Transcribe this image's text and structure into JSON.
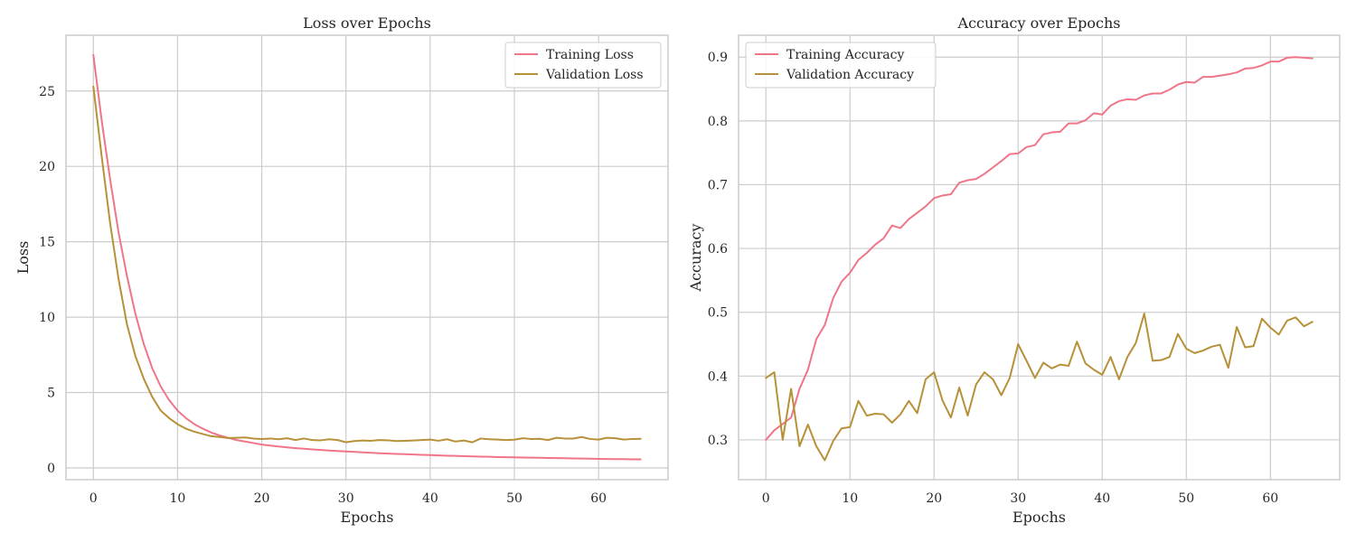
{
  "colors": {
    "training": "#ef7588",
    "validation": "#b69139"
  },
  "chart_data": [
    {
      "type": "line",
      "title": "Loss over Epochs",
      "xlabel": "Epochs",
      "ylabel": "Loss",
      "xlim": [
        -3.25,
        68.25
      ],
      "ylim": [
        -0.78,
        28.7
      ],
      "xticks": [
        0,
        10,
        20,
        30,
        40,
        50,
        60
      ],
      "yticks": [
        0,
        5,
        10,
        15,
        20,
        25
      ],
      "grid": true,
      "legend": "upper right",
      "series": [
        {
          "name": "Training Loss",
          "color": "#ef7588",
          "values": [
            27.4,
            23.0,
            19.1,
            15.6,
            12.7,
            10.2,
            8.2,
            6.6,
            5.4,
            4.5,
            3.8,
            3.3,
            2.9,
            2.6,
            2.35,
            2.15,
            2.0,
            1.85,
            1.75,
            1.65,
            1.55,
            1.48,
            1.42,
            1.36,
            1.31,
            1.27,
            1.23,
            1.19,
            1.15,
            1.12,
            1.09,
            1.06,
            1.03,
            1.0,
            0.97,
            0.95,
            0.93,
            0.91,
            0.89,
            0.87,
            0.85,
            0.83,
            0.81,
            0.8,
            0.78,
            0.76,
            0.75,
            0.74,
            0.72,
            0.71,
            0.7,
            0.69,
            0.68,
            0.67,
            0.66,
            0.65,
            0.64,
            0.63,
            0.62,
            0.61,
            0.6,
            0.59,
            0.58,
            0.58,
            0.57,
            0.57
          ]
        },
        {
          "name": "Validation Loss",
          "color": "#b69139",
          "values": [
            25.3,
            20.6,
            16.2,
            12.5,
            9.5,
            7.4,
            5.9,
            4.7,
            3.8,
            3.3,
            2.9,
            2.6,
            2.4,
            2.25,
            2.1,
            2.05,
            1.98,
            2.0,
            2.02,
            1.95,
            1.92,
            1.95,
            1.9,
            1.97,
            1.85,
            1.95,
            1.85,
            1.83,
            1.9,
            1.85,
            1.7,
            1.78,
            1.82,
            1.8,
            1.85,
            1.83,
            1.78,
            1.8,
            1.82,
            1.85,
            1.88,
            1.8,
            1.9,
            1.75,
            1.82,
            1.7,
            1.95,
            1.9,
            1.88,
            1.85,
            1.87,
            1.97,
            1.92,
            1.93,
            1.85,
            2.0,
            1.95,
            1.95,
            2.05,
            1.92,
            1.88,
            2.0,
            1.97,
            1.88,
            1.92,
            1.93
          ]
        }
      ]
    },
    {
      "type": "line",
      "title": "Accuracy over Epochs",
      "xlabel": "Epochs",
      "ylabel": "Accuracy",
      "xlim": [
        -3.25,
        68.25
      ],
      "ylim": [
        0.2376,
        0.9343
      ],
      "xticks": [
        0,
        10,
        20,
        30,
        40,
        50,
        60
      ],
      "yticks": [
        0.3,
        0.4,
        0.5,
        0.6,
        0.7,
        0.8,
        0.9
      ],
      "grid": true,
      "legend": "upper left",
      "series": [
        {
          "name": "Training Accuracy",
          "color": "#ef7588",
          "values": [
            0.3,
            0.315,
            0.325,
            0.335,
            0.38,
            0.41,
            0.458,
            0.48,
            0.522,
            0.548,
            0.562,
            0.582,
            0.593,
            0.606,
            0.616,
            0.636,
            0.632,
            0.646,
            0.656,
            0.666,
            0.679,
            0.683,
            0.685,
            0.703,
            0.707,
            0.709,
            0.717,
            0.727,
            0.737,
            0.748,
            0.749,
            0.759,
            0.762,
            0.779,
            0.782,
            0.783,
            0.796,
            0.796,
            0.801,
            0.812,
            0.81,
            0.824,
            0.831,
            0.834,
            0.833,
            0.84,
            0.843,
            0.843,
            0.849,
            0.857,
            0.861,
            0.86,
            0.869,
            0.869,
            0.871,
            0.873,
            0.876,
            0.882,
            0.883,
            0.887,
            0.893,
            0.893,
            0.899,
            0.9,
            0.899,
            0.898
          ]
        },
        {
          "name": "Validation Accuracy",
          "color": "#b69139",
          "values": [
            0.397,
            0.406,
            0.3,
            0.38,
            0.29,
            0.324,
            0.29,
            0.268,
            0.298,
            0.318,
            0.32,
            0.361,
            0.338,
            0.341,
            0.34,
            0.327,
            0.34,
            0.361,
            0.342,
            0.395,
            0.406,
            0.362,
            0.335,
            0.382,
            0.338,
            0.387,
            0.406,
            0.395,
            0.37,
            0.397,
            0.45,
            0.424,
            0.397,
            0.421,
            0.412,
            0.418,
            0.416,
            0.454,
            0.42,
            0.41,
            0.402,
            0.43,
            0.395,
            0.43,
            0.452,
            0.498,
            0.424,
            0.425,
            0.43,
            0.466,
            0.443,
            0.436,
            0.44,
            0.446,
            0.449,
            0.413,
            0.477,
            0.445,
            0.447,
            0.49,
            0.476,
            0.465,
            0.487,
            0.492,
            0.478,
            0.485
          ]
        }
      ]
    }
  ]
}
